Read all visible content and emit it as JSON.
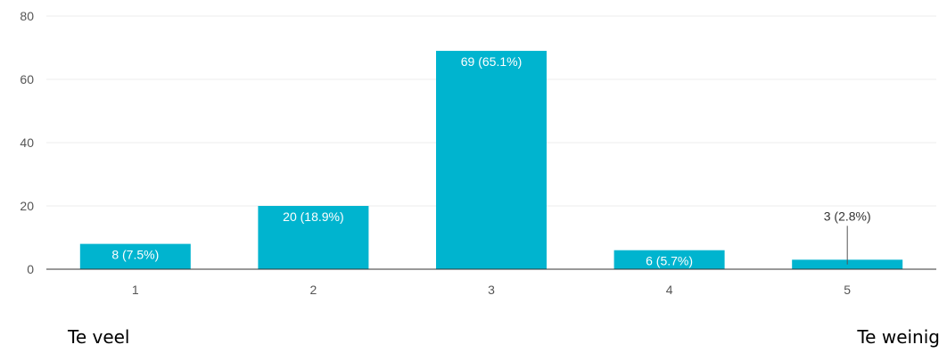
{
  "chart_data": {
    "type": "bar",
    "categories": [
      "1",
      "2",
      "3",
      "4",
      "5"
    ],
    "values": [
      8,
      20,
      69,
      6,
      3
    ],
    "data_labels": [
      "8 (7.5%)",
      "20 (18.9%)",
      "69 (65.1%)",
      "6 (5.7%)",
      "3 (2.8%)"
    ],
    "y_ticks": [
      "0",
      "20",
      "40",
      "60",
      "80"
    ],
    "ylim": [
      0,
      80
    ],
    "grid": true,
    "bar_color": "#00b4cf",
    "grid_color": "#ececec",
    "axis_color": "#333333",
    "text_color": "#555555"
  },
  "scale_labels": {
    "low": "Te veel",
    "high": "Te weinig"
  }
}
